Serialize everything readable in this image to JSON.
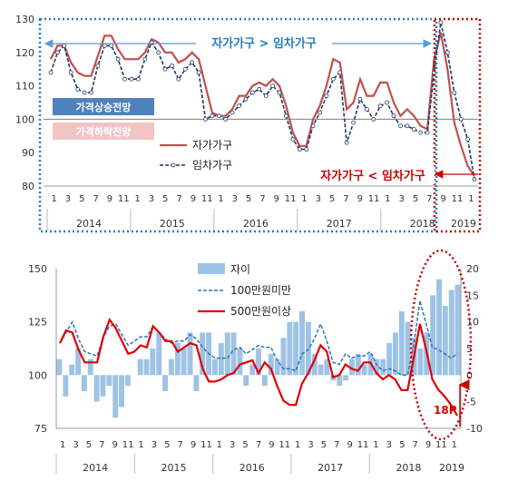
{
  "chart_data": [
    {
      "type": "line",
      "ylim": [
        80,
        130
      ],
      "yticks": [
        80,
        90,
        100,
        110,
        120,
        130
      ],
      "x_month_labels": [
        "1",
        "3",
        "5",
        "7",
        "9",
        "11",
        "1",
        "3",
        "5",
        "7",
        "9",
        "11",
        "1",
        "3",
        "5",
        "7",
        "9",
        "11",
        "1",
        "3",
        "5",
        "7",
        "9",
        "11",
        "1",
        "3",
        "5",
        "7",
        "9",
        "11",
        "1"
      ],
      "years": [
        "2014",
        "2015",
        "2016",
        "2017",
        "2018",
        "2019"
      ],
      "series": [
        {
          "name": "자가가구",
          "color": "#c0504d",
          "values": [
            118,
            122,
            122,
            117,
            114,
            113,
            113,
            119,
            125,
            125,
            121,
            118,
            118,
            118,
            120,
            124,
            123,
            120,
            120,
            117,
            118,
            120,
            118,
            110,
            102,
            101,
            101,
            103,
            107,
            107,
            110,
            111,
            110,
            112,
            110,
            104,
            96,
            92,
            92,
            100,
            104,
            110,
            118,
            117,
            103,
            105,
            112,
            107,
            107,
            111,
            111,
            105,
            101,
            103,
            101,
            98,
            97,
            118,
            126,
            115,
            99,
            92,
            86,
            83
          ]
        },
        {
          "name": "임차가구",
          "color": "#1f3864",
          "values": [
            114,
            120,
            122,
            114,
            109,
            108,
            108,
            116,
            122,
            122,
            118,
            112,
            112,
            112,
            118,
            123,
            120,
            115,
            116,
            112,
            115,
            117,
            114,
            100,
            101,
            101,
            100,
            102,
            104,
            106,
            108,
            109,
            107,
            110,
            108,
            101,
            94,
            91,
            91,
            98,
            102,
            107,
            112,
            114,
            93,
            99,
            106,
            103,
            100,
            104,
            105,
            101,
            98,
            98,
            97,
            96,
            96,
            114,
            129,
            120,
            108,
            100,
            94,
            82
          ]
        }
      ],
      "legend_box": [
        {
          "label": "가격상승전망",
          "color": "#4f81bd"
        },
        {
          "label": "가격하락전망",
          "color": "#f2c4c4"
        }
      ],
      "annotations": [
        {
          "text": "자가가구 > 임차가구",
          "color": "#1f7fc2"
        },
        {
          "text": "자가가구 < 임차가구",
          "color": "#d00000"
        }
      ]
    },
    {
      "type": "bar+line",
      "ylim_left": [
        75,
        150
      ],
      "yticks_left": [
        75,
        100,
        125,
        150
      ],
      "ylim_right": [
        -10,
        20
      ],
      "yticks_right": [
        -10,
        -5,
        0,
        5,
        10,
        15,
        20
      ],
      "x_month_labels": [
        "1",
        "3",
        "5",
        "7",
        "9",
        "11",
        "1",
        "3",
        "5",
        "7",
        "9",
        "11",
        "1",
        "3",
        "5",
        "7",
        "9",
        "11",
        "1",
        "3",
        "5",
        "7",
        "9",
        "11",
        "1",
        "3",
        "5",
        "7",
        "9",
        "11",
        "1"
      ],
      "years": [
        "2014",
        "2015",
        "2016",
        "2017",
        "2018",
        "2019"
      ],
      "bar_series": {
        "name": "자이",
        "color": "#9dc3e6",
        "values": [
          3,
          -4,
          2,
          5,
          -3,
          3,
          -5,
          -4,
          -2,
          -8,
          -6,
          -2,
          0,
          3,
          3,
          5,
          8,
          -3,
          3,
          6,
          5,
          8,
          -3,
          8,
          8,
          3,
          6,
          8,
          8,
          5,
          -2,
          2,
          5,
          -2,
          4,
          3,
          7,
          10,
          10,
          12,
          10,
          4,
          2,
          3,
          -1,
          -2,
          -1,
          3,
          4,
          2,
          4,
          3,
          3,
          6,
          8,
          12,
          10,
          7,
          5,
          8,
          15,
          18,
          13,
          16,
          17
        ]
      },
      "line_series": [
        {
          "name": "100만원미만",
          "color": "#2e75b6",
          "values": [
            115,
            120,
            125,
            117,
            111,
            110,
            109,
            118,
            123,
            124,
            119,
            114,
            116,
            118,
            118,
            123,
            120,
            117,
            115,
            116,
            116,
            119,
            117,
            113,
            110,
            108,
            108,
            108,
            112,
            113,
            110,
            112,
            114,
            113,
            113,
            107,
            103,
            103,
            102,
            110,
            112,
            117,
            124,
            116,
            106,
            105,
            110,
            108,
            109,
            109,
            111,
            105,
            102,
            103,
            102,
            100,
            100,
            114,
            135,
            124,
            113,
            112,
            110,
            108,
            110
          ]
        },
        {
          "name": "500만원이상",
          "color": "#e00000",
          "values": [
            115,
            121,
            120,
            112,
            106,
            106,
            106,
            118,
            126,
            122,
            116,
            110,
            111,
            114,
            113,
            123,
            120,
            116,
            116,
            111,
            113,
            115,
            114,
            103,
            97,
            97,
            98,
            100,
            101,
            105,
            106,
            107,
            101,
            106,
            103,
            95,
            88,
            86,
            86,
            96,
            101,
            107,
            114,
            111,
            99,
            100,
            105,
            103,
            102,
            106,
            106,
            101,
            98,
            100,
            98,
            93,
            93,
            108,
            124,
            112,
            98,
            93,
            90,
            86,
            81
          ]
        }
      ],
      "annotation": {
        "text": "18P",
        "color": "#d00000"
      }
    }
  ]
}
